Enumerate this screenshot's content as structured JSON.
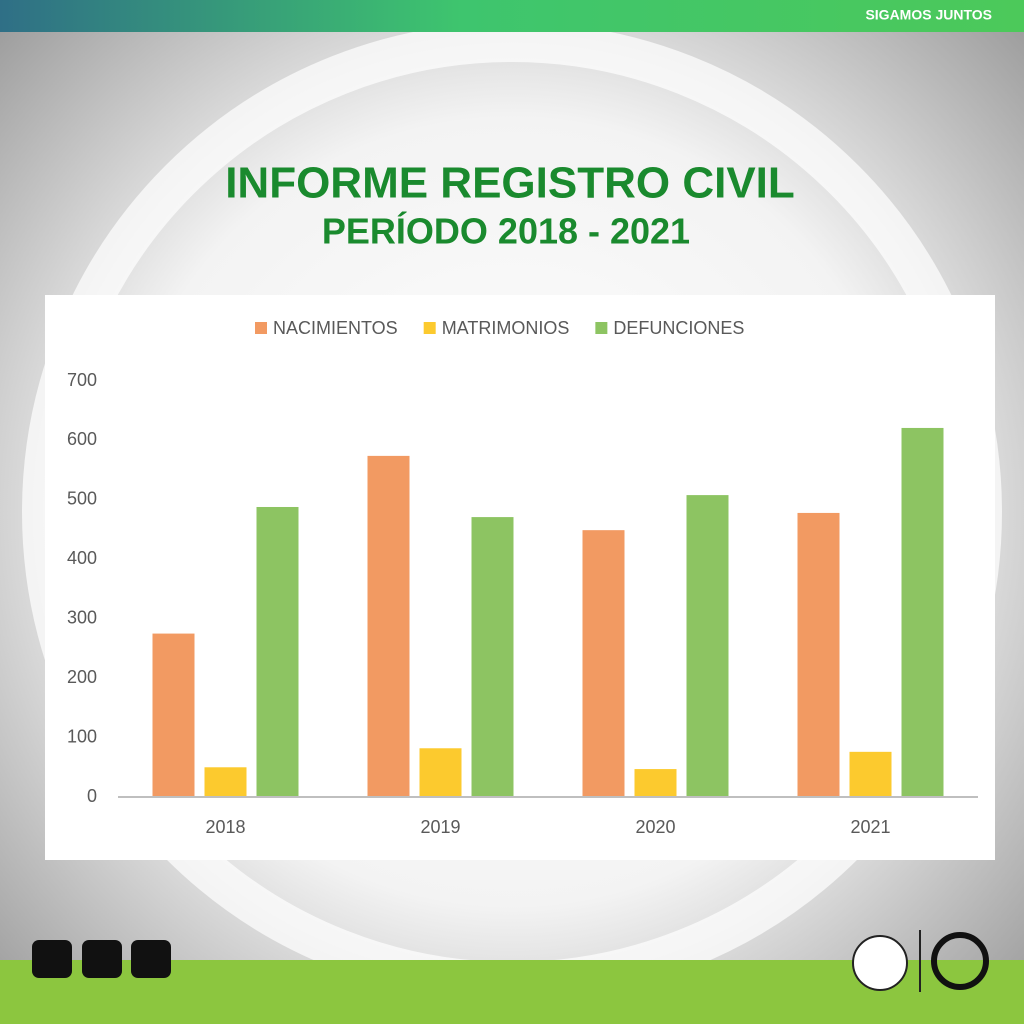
{
  "brand": "SIGAMOS JUNTOS",
  "chart_data": {
    "type": "bar",
    "title": "INFORME REGISTRO CIVIL",
    "subtitle": "PERÍODO 2018 - 2021",
    "categories": [
      "2018",
      "2019",
      "2020",
      "2021"
    ],
    "series": [
      {
        "name": "NACIMIENTOS",
        "color": "#f29a62",
        "values": [
          275,
          574,
          449,
          478
        ]
      },
      {
        "name": "MATRIMONIOS",
        "color": "#fcca2e",
        "values": [
          50,
          82,
          47,
          76
        ]
      },
      {
        "name": "DEFUNCIONES",
        "color": "#8dc462",
        "values": [
          488,
          471,
          508,
          621
        ]
      }
    ],
    "ylim": [
      0,
      700
    ],
    "yticks": [
      0,
      100,
      200,
      300,
      400,
      500,
      600,
      700
    ],
    "grid": false,
    "legend": "top"
  }
}
